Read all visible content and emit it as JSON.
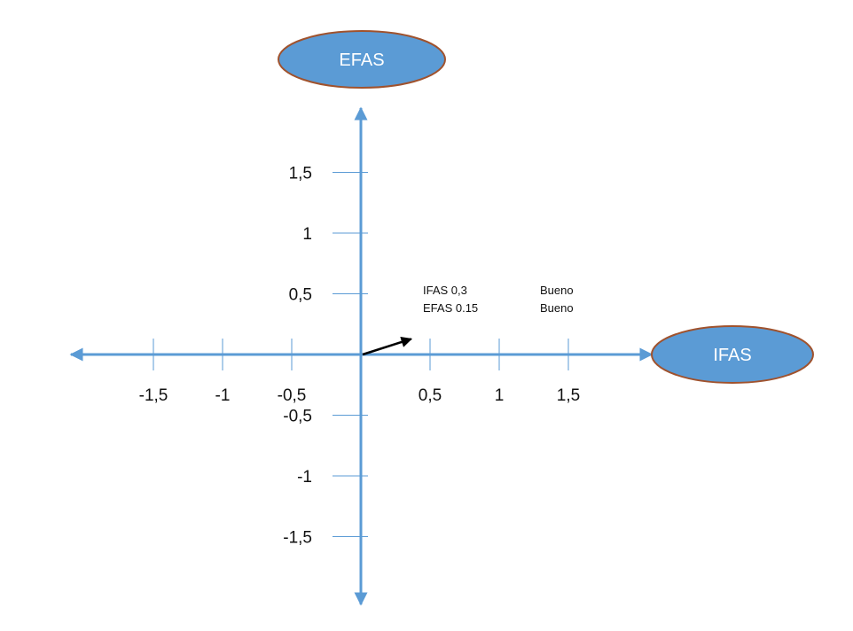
{
  "colors": {
    "axis": "#5b9bd5",
    "oval_fill": "#5b9bd5",
    "oval_stroke": "#a0522d",
    "vector": "#000000",
    "text": "#111111"
  },
  "ovals": {
    "top_label": "EFAS",
    "right_label": "IFAS"
  },
  "x_ticks": [
    {
      "value": -1.5,
      "label": "-1,5"
    },
    {
      "value": -1,
      "label": "-1"
    },
    {
      "value": -0.5,
      "label": "-0,5"
    },
    {
      "value": 0.5,
      "label": "0,5"
    },
    {
      "value": 1,
      "label": "1"
    },
    {
      "value": 1.5,
      "label": "1,5"
    }
  ],
  "y_ticks": [
    {
      "value": 1.5,
      "label": "1,5"
    },
    {
      "value": 1,
      "label": "1"
    },
    {
      "value": 0.5,
      "label": "0,5"
    },
    {
      "value": -0.5,
      "label": "-0,5"
    },
    {
      "value": -1,
      "label": "-1"
    },
    {
      "value": -1.5,
      "label": "-1,5"
    }
  ],
  "result_vector": {
    "ifas": 0.3,
    "efas": 0.15
  },
  "notes": {
    "ifas_line": "IFAS 0,3",
    "ifas_rating": "Bueno",
    "efas_line": "EFAS 0.15",
    "efas_rating": "Bueno"
  }
}
